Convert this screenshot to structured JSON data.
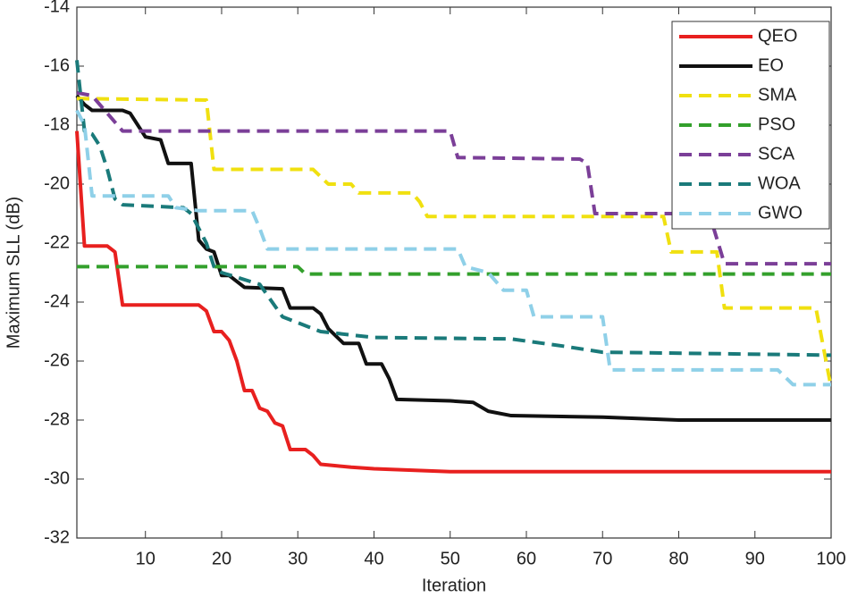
{
  "chart_data": {
    "type": "line",
    "xlabel": "Iteration",
    "ylabel": "Maximum SLL (dB)",
    "xlim": [
      1,
      100
    ],
    "ylim": [
      -32,
      -14
    ],
    "xticks": [
      10,
      20,
      30,
      40,
      50,
      60,
      70,
      80,
      90,
      100
    ],
    "yticks": [
      -32,
      -30,
      -28,
      -26,
      -24,
      -22,
      -20,
      -18,
      -16,
      -14
    ],
    "legend": "upper right",
    "series": [
      {
        "name": "QEO",
        "color": "#e8201f",
        "dashed": false,
        "x": [
          1,
          2,
          5,
          6,
          7,
          17,
          18,
          19,
          20,
          21,
          22,
          23,
          24,
          25,
          26,
          27,
          28,
          29,
          31,
          32,
          33,
          35,
          37,
          40,
          45,
          50,
          100
        ],
        "values": [
          -18.2,
          -22.1,
          -22.1,
          -22.3,
          -24.1,
          -24.1,
          -24.3,
          -25.0,
          -25.0,
          -25.3,
          -26.0,
          -27.0,
          -27.0,
          -27.6,
          -27.7,
          -28.1,
          -28.2,
          -29.0,
          -29.0,
          -29.2,
          -29.5,
          -29.55,
          -29.6,
          -29.65,
          -29.7,
          -29.75,
          -29.75
        ]
      },
      {
        "name": "EO",
        "color": "#111111",
        "dashed": false,
        "x": [
          1,
          2,
          3,
          7,
          8,
          9,
          10,
          12,
          13,
          16,
          17,
          18,
          19,
          20,
          21,
          22,
          23,
          28,
          29,
          32,
          33,
          34,
          36,
          38,
          39,
          41,
          42,
          43,
          50,
          53,
          55,
          58,
          70,
          80,
          100
        ],
        "values": [
          -17.0,
          -17.3,
          -17.5,
          -17.5,
          -17.6,
          -18.0,
          -18.4,
          -18.5,
          -19.3,
          -19.3,
          -21.9,
          -22.2,
          -22.3,
          -23.1,
          -23.1,
          -23.3,
          -23.5,
          -23.55,
          -24.2,
          -24.2,
          -24.4,
          -24.9,
          -25.4,
          -25.4,
          -26.1,
          -26.1,
          -26.6,
          -27.3,
          -27.35,
          -27.4,
          -27.7,
          -27.85,
          -27.9,
          -28.0,
          -28.0
        ]
      },
      {
        "name": "SMA",
        "color": "#f0e010",
        "dashed": true,
        "x": [
          1,
          18,
          19,
          32,
          34,
          37,
          38,
          45,
          46,
          47,
          78,
          79,
          85,
          86,
          98,
          100
        ],
        "values": [
          -17.1,
          -17.15,
          -19.5,
          -19.5,
          -20.0,
          -20.0,
          -20.3,
          -20.3,
          -20.6,
          -21.1,
          -21.1,
          -22.3,
          -22.3,
          -24.2,
          -24.2,
          -26.9
        ]
      },
      {
        "name": "PSO",
        "color": "#33a02c",
        "dashed": true,
        "x": [
          1,
          30,
          31,
          100
        ],
        "values": [
          -22.8,
          -22.8,
          -23.05,
          -23.05
        ]
      },
      {
        "name": "SCA",
        "color": "#7b3f98",
        "dashed": true,
        "x": [
          1,
          3,
          4,
          7,
          50,
          51,
          67,
          68,
          69,
          84,
          86,
          100
        ],
        "values": [
          -16.9,
          -17.0,
          -17.3,
          -18.2,
          -18.2,
          -19.1,
          -19.15,
          -19.3,
          -21.0,
          -21.0,
          -22.7,
          -22.7
        ]
      },
      {
        "name": "WOA",
        "color": "#1a7a7a",
        "dashed": true,
        "x": [
          1,
          2,
          3,
          4,
          5,
          6,
          7,
          15,
          16,
          17,
          18,
          19,
          20,
          25,
          28,
          30,
          33,
          40,
          58,
          65,
          70,
          100
        ],
        "values": [
          -15.8,
          -18.2,
          -18.3,
          -18.7,
          -19.5,
          -20.5,
          -20.7,
          -20.8,
          -21.0,
          -21.5,
          -22.0,
          -22.8,
          -23.0,
          -23.4,
          -24.5,
          -24.7,
          -25.0,
          -25.2,
          -25.25,
          -25.5,
          -25.7,
          -25.8
        ]
      },
      {
        "name": "GWO",
        "color": "#8fd0e8",
        "dashed": true,
        "x": [
          1,
          2,
          3,
          13,
          14,
          17,
          24,
          25,
          26,
          51,
          52,
          55,
          57,
          60,
          61,
          70,
          71,
          93,
          95,
          100
        ],
        "values": [
          -17.5,
          -18.0,
          -20.4,
          -20.4,
          -20.8,
          -20.9,
          -20.9,
          -21.5,
          -22.2,
          -22.2,
          -22.8,
          -23.0,
          -23.6,
          -23.6,
          -24.5,
          -24.5,
          -26.3,
          -26.3,
          -26.8,
          -26.8
        ]
      }
    ]
  }
}
